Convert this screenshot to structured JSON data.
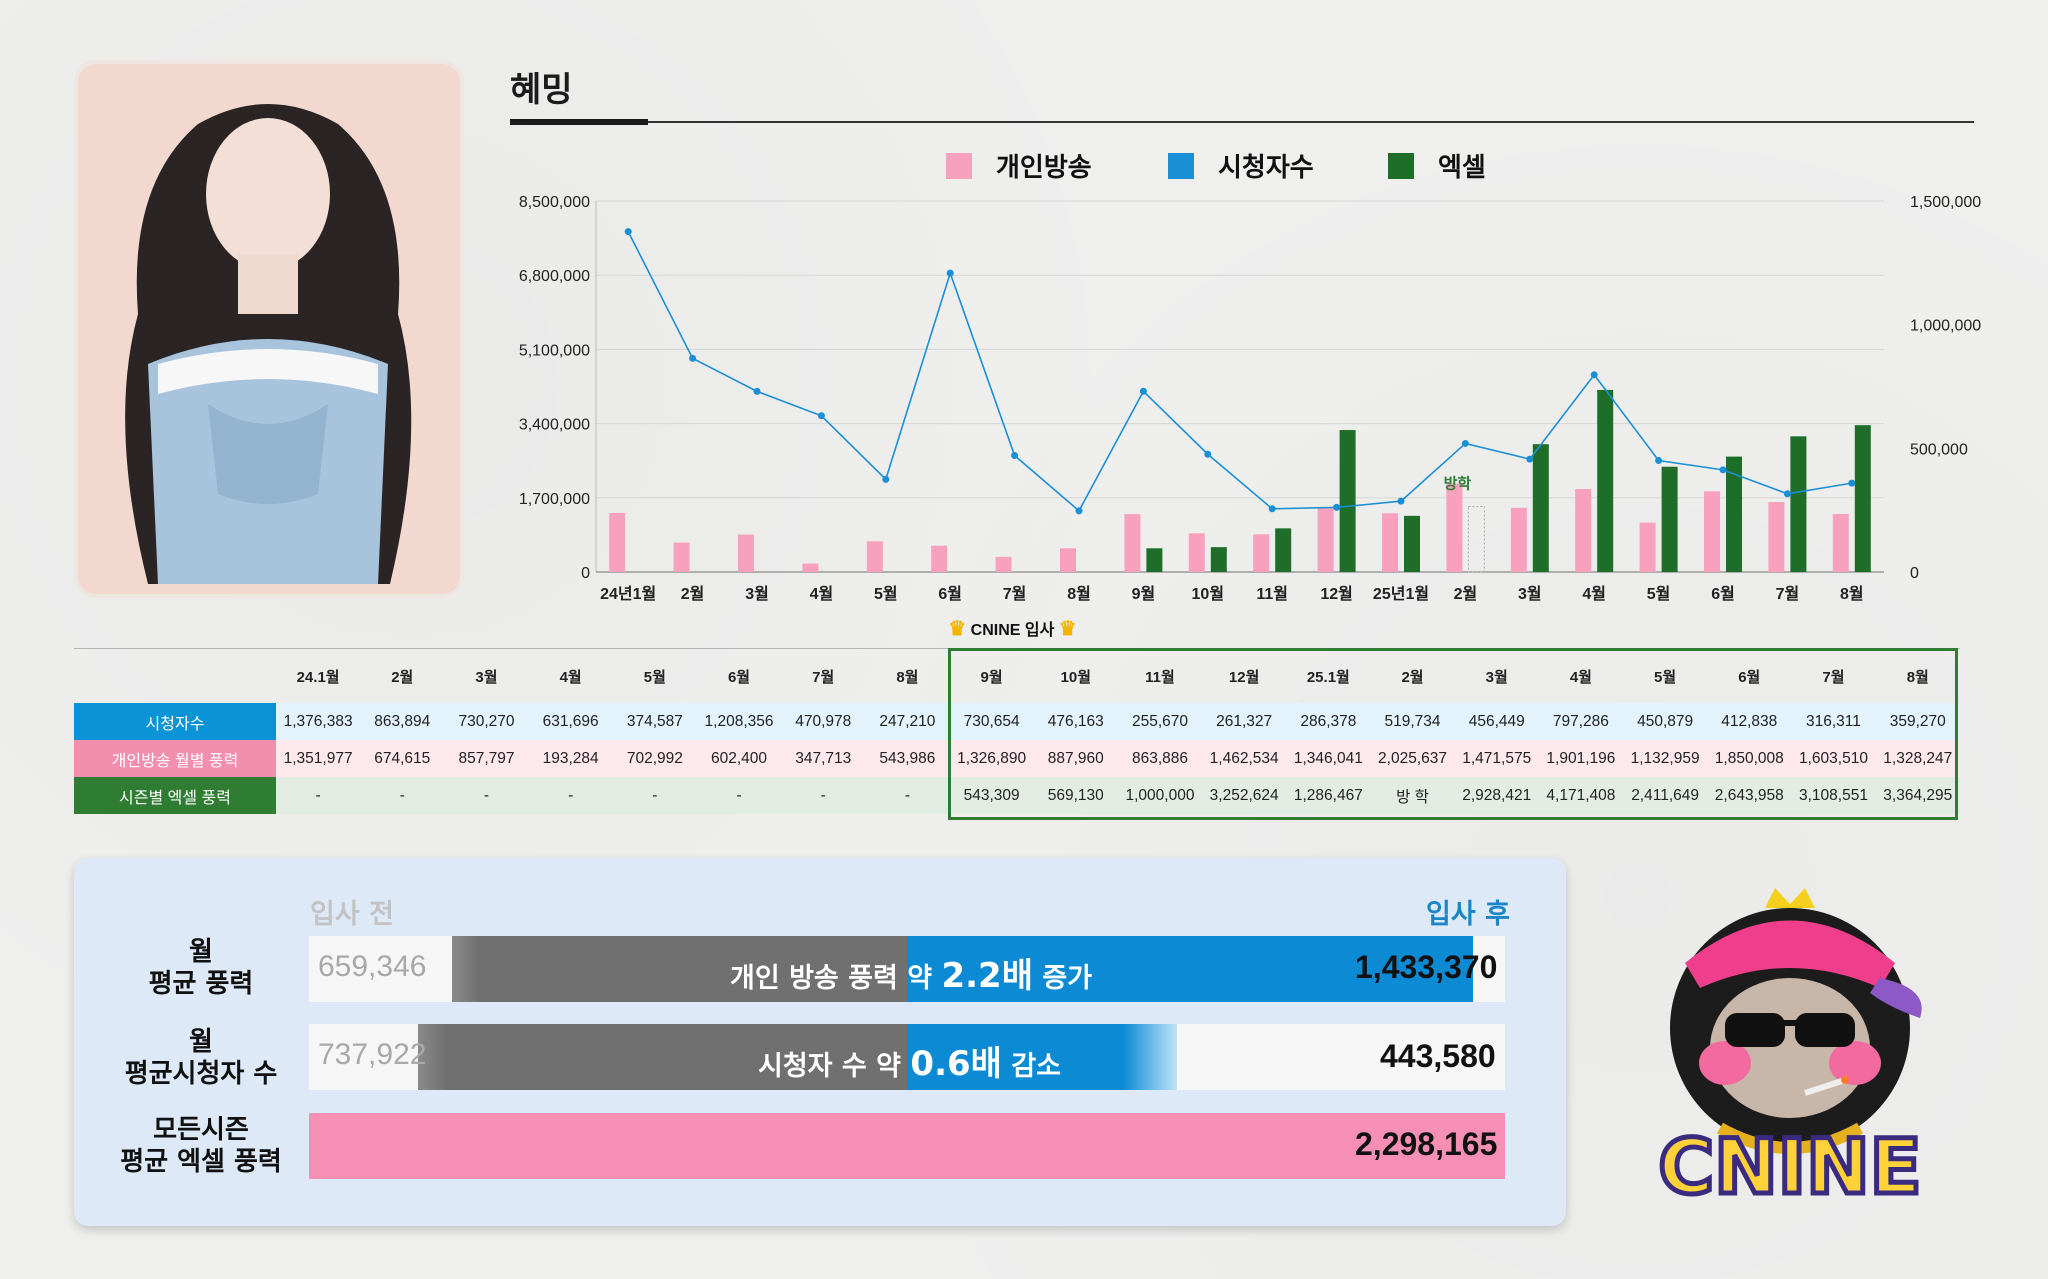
{
  "title": "혜밍",
  "chart_data": {
    "type": "bar",
    "categories": [
      "24년1월",
      "2월",
      "3월",
      "4월",
      "5월",
      "6월",
      "7월",
      "8월",
      "9월",
      "10월",
      "11월",
      "12월",
      "25년1월",
      "2월",
      "3월",
      "4월",
      "5월",
      "6월",
      "7월",
      "8월"
    ],
    "series": [
      {
        "name": "개인방송",
        "type": "bar",
        "axis": "left",
        "color": "#f7a1bf",
        "values": [
          1351977,
          674615,
          857797,
          193284,
          702992,
          602400,
          347713,
          543986,
          1326890,
          887960,
          863886,
          1462534,
          1346041,
          2025637,
          1471575,
          1901196,
          1132959,
          1850008,
          1603510,
          1328247
        ]
      },
      {
        "name": "시청자수",
        "type": "line",
        "axis": "right",
        "color": "#1a8fd6",
        "values": [
          1376383,
          863894,
          730270,
          631696,
          374587,
          1208356,
          470978,
          247210,
          730654,
          476163,
          255670,
          261327,
          286378,
          519734,
          456449,
          797286,
          450879,
          412838,
          316311,
          359270
        ]
      },
      {
        "name": "엑셀",
        "type": "bar",
        "axis": "left",
        "color": "#1e6e2a",
        "values": [
          null,
          null,
          null,
          null,
          null,
          null,
          null,
          null,
          543309,
          569130,
          1000000,
          3252624,
          1286467,
          1500000,
          2928421,
          4171408,
          2411649,
          2643958,
          3108551,
          3364295
        ]
      }
    ],
    "left_axis": {
      "ticks": [
        "8,500,000",
        "6,800,000",
        "5,100,000",
        "3,400,000",
        "1,700,000",
        "0"
      ],
      "ylim": [
        0,
        8500000
      ]
    },
    "right_axis": {
      "ticks": [
        "1,500,000",
        "1,000,000",
        "500,000",
        "0"
      ],
      "ylim": [
        0,
        1500000
      ]
    },
    "annotation": {
      "label": "방학",
      "index": 13
    },
    "legend_position": "top"
  },
  "join_label": "CNINE 입사",
  "table": {
    "columns": [
      "24.1월",
      "2월",
      "3월",
      "4월",
      "5월",
      "6월",
      "7월",
      "8월",
      "9월",
      "10월",
      "11월",
      "12월",
      "25.1월",
      "2월",
      "3월",
      "4월",
      "5월",
      "6월",
      "7월",
      "8월"
    ],
    "rows": [
      {
        "label": "시청자수",
        "values": [
          "1,376,383",
          "863,894",
          "730,270",
          "631,696",
          "374,587",
          "1,208,356",
          "470,978",
          "247,210",
          "730,654",
          "476,163",
          "255,670",
          "261,327",
          "286,378",
          "519,734",
          "456,449",
          "797,286",
          "450,879",
          "412,838",
          "316,311",
          "359,270"
        ]
      },
      {
        "label": "개인방송 월별 풍력",
        "values": [
          "1,351,977",
          "674,615",
          "857,797",
          "193,284",
          "702,992",
          "602,400",
          "347,713",
          "543,986",
          "1,326,890",
          "887,960",
          "863,886",
          "1,462,534",
          "1,346,041",
          "2,025,637",
          "1,471,575",
          "1,901,196",
          "1,132,959",
          "1,850,008",
          "1,603,510",
          "1,328,247"
        ]
      },
      {
        "label": "시즌별 엑셀 풍력",
        "values": [
          "-",
          "-",
          "-",
          "-",
          "-",
          "-",
          "-",
          "-",
          "543,309",
          "569,130",
          "1,000,000",
          "3,252,624",
          "1,286,467",
          "방 학",
          "2,928,421",
          "4,171,408",
          "2,411,649",
          "2,643,958",
          "3,108,551",
          "3,364,295"
        ]
      }
    ]
  },
  "summary": {
    "before_label": "입사 전",
    "after_label": "입사 후",
    "rows": [
      {
        "label_line1": "월",
        "label_line2": "평균 풍력",
        "before": "659,346",
        "after": "1,433,370",
        "msg_pre": "개인 방송 풍력 약 ",
        "msg_num": "2.2배",
        "msg_post": " 증가"
      },
      {
        "label_line1": "월",
        "label_line2": "평균시청자 수",
        "before": "737,922",
        "after": "443,580",
        "msg_pre": "시청자 수 약 ",
        "msg_num": "0.6배",
        "msg_post": " 감소"
      },
      {
        "label_line1": "모든시즌",
        "label_line2": "평균 엑셀 풍력",
        "after": "2,298,165"
      }
    ]
  },
  "logo_text": "CNINE"
}
